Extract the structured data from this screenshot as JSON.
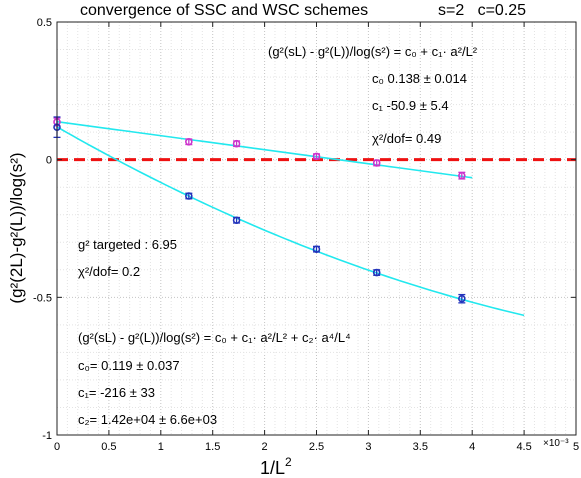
{
  "chart_data": {
    "type": "scatter",
    "title": "convergence of SSC and WSC schemes",
    "title_right": "s=2   c=0.25",
    "xlabel": "1/L",
    "xlabel_sup": "2",
    "ylabel": "(g²(2L)-g²(L))/log(s²)",
    "x_multiplier": "×10⁻³",
    "xlim": [
      0,
      5
    ],
    "ylim": [
      -1,
      0.5
    ],
    "x_scale": 0.001,
    "xticks": [
      0,
      0.5,
      1,
      1.5,
      2,
      2.5,
      3,
      3.5,
      4,
      4.5,
      5
    ],
    "xtick_labels": [
      "0",
      "0.5",
      "1",
      "1.5",
      "2",
      "2.5",
      "3",
      "3.5",
      "4",
      "4.5",
      "5"
    ],
    "yticks": [
      -1,
      -0.5,
      0,
      0.5
    ],
    "ytick_labels": [
      "-1",
      "-0.5",
      "0",
      "0.5"
    ],
    "grid": "dotted",
    "zero_line": {
      "y": 0,
      "color": "#ee1111",
      "style": "dashed"
    },
    "series": [
      {
        "marker_color": "#cc33cc",
        "x": [
          0,
          1.27,
          1.73,
          2.5,
          3.08,
          3.9
        ],
        "y": [
          0.137,
          0.065,
          0.058,
          0.012,
          -0.012,
          -0.058
        ],
        "err": [
          0.014,
          0.01,
          0.01,
          0.009,
          0.01,
          0.012
        ]
      },
      {
        "marker_color": "#2233bb",
        "x": [
          0,
          1.27,
          1.73,
          2.5,
          3.08,
          3.9
        ],
        "y": [
          0.118,
          -0.132,
          -0.22,
          -0.325,
          -0.41,
          -0.505
        ],
        "err": [
          0.037,
          0.01,
          0.01,
          0.01,
          0.01,
          0.015
        ]
      }
    ],
    "fits": [
      {
        "color": "#22e8ee",
        "c0": 0.138,
        "c1": -50.9,
        "c2": 0,
        "x_end": 4.0
      },
      {
        "color": "#22e8ee",
        "c0": 0.119,
        "c1": -216,
        "c2": 14200,
        "x_end": 4.5
      }
    ],
    "annotations": {
      "fit1_formula": "(g²(sL) - g²(L))/log(s²) = c₀ + c₁· a²/L²",
      "fit1_c0": "c₀  0.138 ± 0.014",
      "fit1_c1": "c₁  -50.9 ± 5.4",
      "fit1_chi2": "χ²/dof= 0.49",
      "targeted": "g² targeted : 6.95",
      "fit2_chi2": "χ²/dof= 0.2",
      "fit2_formula": "(g²(sL) - g²(L))/log(s²) = c₀ + c₁· a²/L² + c₂· a⁴/L⁴",
      "fit2_c0": "c₀=  0.119 ± 0.037",
      "fit2_c1": "c₁=  -216 ± 33",
      "fit2_c2": "c₂=  1.42e+04 ± 6.6e+03"
    }
  }
}
